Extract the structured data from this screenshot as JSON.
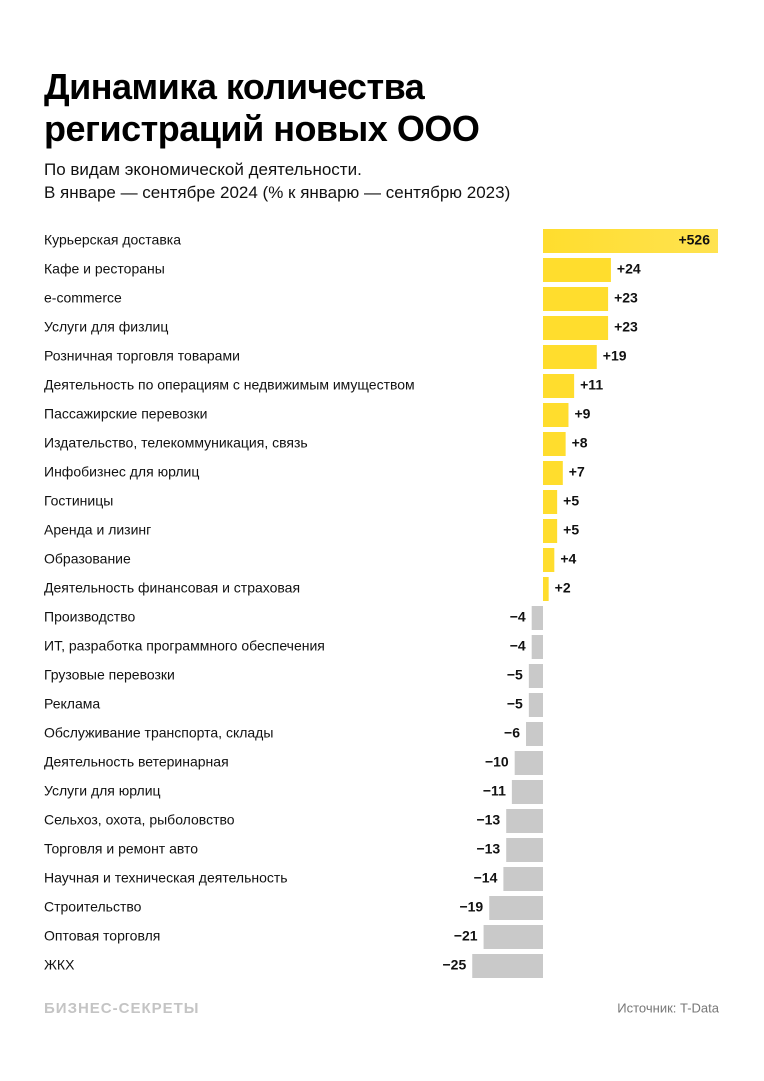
{
  "chart_data": {
    "type": "bar",
    "orientation": "horizontal",
    "title": "Динамика количества\nрегистраций новых ООО",
    "subtitle": "По видам экономической деятельности.\nВ январе — сентябре 2024 (% к январю — сентябрю 2023)",
    "categories": [
      "Курьерская доставка",
      "Кафе и рестораны",
      "e-commerce",
      "Услуги для физлиц",
      "Розничная торговля товарами",
      "Деятельность по операциям с недвижимым имуществом",
      "Пассажирские перевозки",
      "Издательство, телекоммуникация, связь",
      "Инфобизнес для юрлиц",
      "Гостиницы",
      "Аренда и лизинг",
      "Образование",
      "Деятельность финансовая и страховая",
      "Производство",
      "ИТ, разработка программного обеспечения",
      "Грузовые перевозки",
      "Реклама",
      "Обслуживание транспорта, склады",
      "Деятельность ветеринарная",
      "Услуги для юрлиц",
      "Сельхоз, охота, рыболовство",
      "Торговля и ремонт авто",
      "Научная и техническая деятельность",
      "Строительство",
      "Оптовая торговля",
      "ЖКХ"
    ],
    "values": [
      526,
      24,
      23,
      23,
      19,
      11,
      9,
      8,
      7,
      5,
      5,
      4,
      2,
      -4,
      -4,
      -5,
      -5,
      -6,
      -10,
      -11,
      -13,
      -13,
      -14,
      -19,
      -21,
      -25
    ],
    "value_labels": [
      "+526",
      "+24",
      "+23",
      "+23",
      "+19",
      "+11",
      "+9",
      "+8",
      "+7",
      "+5",
      "+5",
      "+4",
      "+2",
      "−4",
      "−4",
      "−5",
      "−5",
      "−6",
      "−10",
      "−11",
      "−13",
      "−13",
      "−14",
      "−19",
      "−21",
      "−25"
    ],
    "positive_color": "#ffdd2d",
    "negative_color": "#c9c9c9",
    "brand": "БИЗНЕС-СЕКРЕТЫ",
    "source": "Источник: T-Data"
  }
}
